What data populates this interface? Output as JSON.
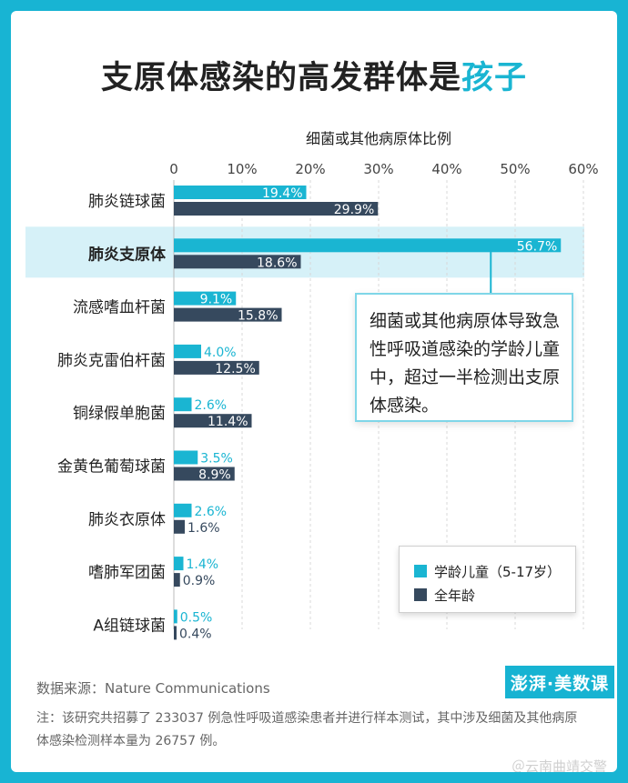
{
  "title": {
    "prefix": "支原体感染的高发群体是",
    "highlight": "孩子"
  },
  "colors": {
    "children": "#1ab5d2",
    "all_ages": "#36495e",
    "highlight_row": "#d6f1f8",
    "border": "#18b4d3"
  },
  "chart_data": {
    "type": "bar",
    "orientation": "horizontal",
    "xlabel": "细菌或其他病原体比例",
    "xlim": [
      0,
      60
    ],
    "ticks": [
      0,
      10,
      20,
      30,
      40,
      50,
      60
    ],
    "tick_labels": [
      "0",
      "10%",
      "20%",
      "30%",
      "40%",
      "50%",
      "60%"
    ],
    "categories": [
      "肺炎链球菌",
      "肺炎支原体",
      "流感嗜血杆菌",
      "肺炎克雷伯杆菌",
      "铜绿假单胞菌",
      "金黄色葡萄球菌",
      "肺炎衣原体",
      "嗜肺军团菌",
      "A组链球菌"
    ],
    "highlight_category": "肺炎支原体",
    "series": [
      {
        "name": "学龄儿童（5-17岁）",
        "key": "children",
        "values": [
          19.4,
          56.7,
          9.1,
          4.0,
          2.6,
          3.5,
          2.6,
          1.4,
          0.5
        ],
        "labels": [
          "19.4%",
          "56.7%",
          "9.1%",
          "4.0%",
          "2.6%",
          "3.5%",
          "2.6%",
          "1.4%",
          "0.5%"
        ]
      },
      {
        "name": "全年龄",
        "key": "all_ages",
        "values": [
          29.9,
          18.6,
          15.8,
          12.5,
          11.4,
          8.9,
          1.6,
          0.9,
          0.4
        ],
        "labels": [
          "29.9%",
          "18.6%",
          "15.8%",
          "12.5%",
          "11.4%",
          "8.9%",
          "1.6%",
          "0.9%",
          "0.4%"
        ]
      }
    ],
    "grid": true,
    "legend_position": "bottom-right",
    "annotation": "细菌或其他病原体导致急性呼吸道感染的学龄儿童中，超过一半检测出支原体感染。"
  },
  "legend": {
    "children": "学龄儿童（5-17岁）",
    "all_ages": "全年龄"
  },
  "brand": "澎湃·美数课",
  "source": "数据来源：Nature Communications",
  "note": "注：该研究共招募了 233037 例急性呼吸道感染患者并进行样本测试，其中涉及细菌及其他病原体感染检测样本量为 26757 例。",
  "watermark": "＠云南曲靖交警"
}
